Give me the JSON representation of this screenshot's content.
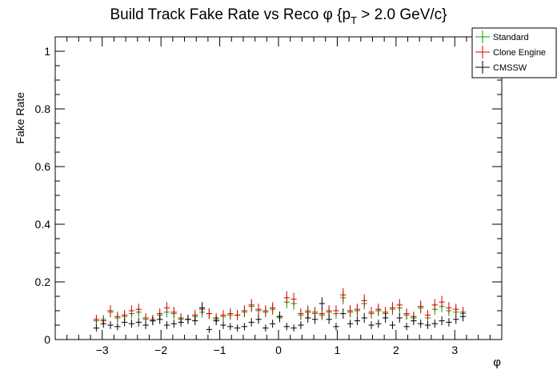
{
  "chart_data": {
    "type": "scatter",
    "title": "Build Track Fake Rate vs Reco φ {p_T > 2.0 GeV/c}",
    "xlabel": "φ",
    "ylabel": "Fake Rate",
    "xlim": [
      -3.8,
      3.8
    ],
    "ylim": [
      0,
      1.05
    ],
    "xticks": [
      -3,
      -2,
      -1,
      0,
      1,
      2,
      3
    ],
    "xtick_labels": [
      "−3",
      "−2",
      "−1",
      "0",
      "1",
      "2",
      "3"
    ],
    "yticks": [
      0,
      0.2,
      0.4,
      0.6,
      0.8,
      1
    ],
    "ytick_labels": [
      "0",
      "0.2",
      "0.4",
      "0.6",
      "0.8",
      "1"
    ],
    "grid": false,
    "legend_position": "top-right",
    "bin_half_width": 0.05,
    "x": [
      -3.1,
      -2.98,
      -2.86,
      -2.74,
      -2.62,
      -2.5,
      -2.38,
      -2.26,
      -2.14,
      -2.02,
      -1.9,
      -1.78,
      -1.66,
      -1.54,
      -1.42,
      -1.3,
      -1.18,
      -1.06,
      -0.94,
      -0.82,
      -0.7,
      -0.58,
      -0.46,
      -0.34,
      -0.22,
      -0.1,
      0.02,
      0.14,
      0.26,
      0.38,
      0.5,
      0.62,
      0.74,
      0.86,
      0.98,
      1.1,
      1.22,
      1.34,
      1.46,
      1.58,
      1.7,
      1.82,
      1.94,
      2.06,
      2.18,
      2.3,
      2.42,
      2.54,
      2.66,
      2.78,
      2.9,
      3.02,
      3.14
    ],
    "series": [
      {
        "name": "Standard",
        "color": "#00aa00",
        "values": [
          0.065,
          0.07,
          0.095,
          0.075,
          0.08,
          0.09,
          0.095,
          0.07,
          0.065,
          0.085,
          0.095,
          0.09,
          0.07,
          0.07,
          0.08,
          0.095,
          0.09,
          0.07,
          0.08,
          0.085,
          0.085,
          0.095,
          0.115,
          0.1,
          0.095,
          0.105,
          0.075,
          0.13,
          0.125,
          0.085,
          0.1,
          0.09,
          0.085,
          0.095,
          0.09,
          0.145,
          0.095,
          0.1,
          0.125,
          0.09,
          0.1,
          0.09,
          0.105,
          0.11,
          0.085,
          0.075,
          0.11,
          0.075,
          0.105,
          0.115,
          0.1,
          0.095,
          0.09
        ]
      },
      {
        "name": "Clone Engine",
        "color": "#dd0000",
        "values": [
          0.07,
          0.065,
          0.1,
          0.08,
          0.085,
          0.1,
          0.105,
          0.075,
          0.07,
          0.09,
          0.11,
          0.095,
          0.075,
          0.07,
          0.085,
          0.105,
          0.09,
          0.075,
          0.085,
          0.09,
          0.085,
          0.1,
          0.12,
          0.105,
          0.1,
          0.11,
          0.08,
          0.145,
          0.14,
          0.09,
          0.095,
          0.095,
          0.09,
          0.1,
          0.1,
          0.155,
          0.1,
          0.105,
          0.135,
          0.095,
          0.105,
          0.095,
          0.11,
          0.12,
          0.09,
          0.08,
          0.115,
          0.085,
          0.12,
          0.13,
          0.11,
          0.105,
          0.095
        ]
      },
      {
        "name": "CMSSW",
        "color": "#000000",
        "values": [
          0.04,
          0.055,
          0.05,
          0.045,
          0.06,
          0.055,
          0.06,
          0.05,
          0.065,
          0.07,
          0.05,
          0.055,
          0.06,
          0.07,
          0.065,
          0.11,
          0.035,
          0.065,
          0.05,
          0.045,
          0.04,
          0.045,
          0.06,
          0.07,
          0.04,
          0.055,
          0.08,
          0.045,
          0.04,
          0.05,
          0.075,
          0.07,
          0.125,
          0.07,
          0.045,
          0.09,
          0.055,
          0.065,
          0.075,
          0.05,
          0.055,
          0.075,
          0.05,
          0.075,
          0.045,
          0.065,
          0.055,
          0.05,
          0.055,
          0.065,
          0.06,
          0.07,
          0.08
        ]
      }
    ]
  }
}
